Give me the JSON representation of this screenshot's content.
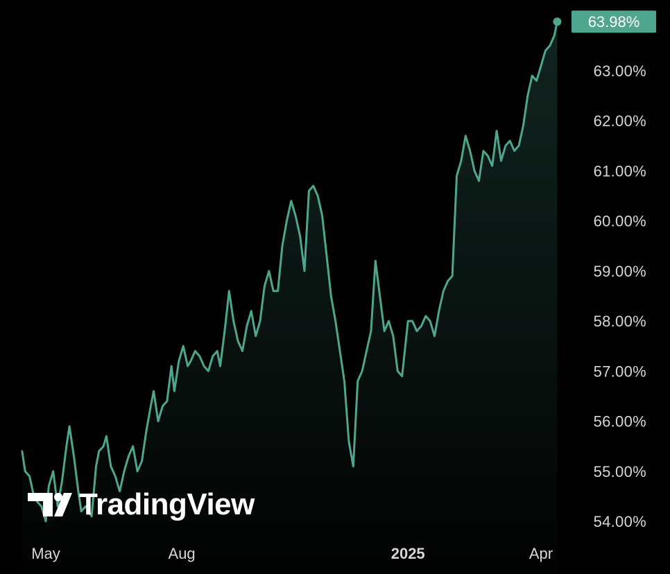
{
  "watermark": {
    "text": "TradingView",
    "logo": "tradingview-logo"
  },
  "colors": {
    "background": "#000000",
    "line": "#4fa68f",
    "badge": "#4fa68f",
    "text": "#d6d6d6"
  },
  "chart_data": {
    "type": "area",
    "ylim": [
      53.8,
      64.3
    ],
    "y_ticks": [
      "63.00%",
      "62.00%",
      "61.00%",
      "60.00%",
      "59.00%",
      "58.00%",
      "57.00%",
      "56.00%",
      "55.00%",
      "54.00%"
    ],
    "x_ticks": [
      {
        "label": "May",
        "x": "2024-05-01",
        "bold": false
      },
      {
        "label": "Aug",
        "x": "2024-08-01",
        "bold": false
      },
      {
        "label": "2025",
        "x": "2025-01-01",
        "bold": true
      },
      {
        "label": "Apr",
        "x": "2025-04-01",
        "bold": false
      }
    ],
    "last_value_label": "63.98%",
    "series": [
      {
        "x": [
          "2024-04-15",
          "2024-04-17",
          "2024-04-20",
          "2024-04-23",
          "2024-04-25",
          "2024-04-28",
          "2024-05-01",
          "2024-05-03",
          "2024-05-06",
          "2024-05-09",
          "2024-05-12",
          "2024-05-15",
          "2024-05-17",
          "2024-05-20",
          "2024-05-23",
          "2024-05-25",
          "2024-05-28",
          "2024-06-01",
          "2024-06-04",
          "2024-06-06",
          "2024-06-09",
          "2024-06-11",
          "2024-06-14",
          "2024-06-17",
          "2024-06-20",
          "2024-06-23",
          "2024-06-26",
          "2024-06-29",
          "2024-07-02",
          "2024-07-05",
          "2024-07-08",
          "2024-07-11",
          "2024-07-13",
          "2024-07-16",
          "2024-07-19",
          "2024-07-22",
          "2024-07-25",
          "2024-07-27",
          "2024-07-30",
          "2024-08-02",
          "2024-08-05",
          "2024-08-07",
          "2024-08-10",
          "2024-08-13",
          "2024-08-16",
          "2024-08-19",
          "2024-08-22",
          "2024-08-25",
          "2024-08-27",
          "2024-08-30",
          "2024-09-02",
          "2024-09-05",
          "2024-09-08",
          "2024-09-11",
          "2024-09-14",
          "2024-09-17",
          "2024-09-20",
          "2024-09-23",
          "2024-09-26",
          "2024-09-29",
          "2024-10-02",
          "2024-10-05",
          "2024-10-08",
          "2024-10-11",
          "2024-10-14",
          "2024-10-17",
          "2024-10-20",
          "2024-10-23",
          "2024-10-26",
          "2024-10-29",
          "2024-11-01",
          "2024-11-04",
          "2024-11-07",
          "2024-11-10",
          "2024-11-13",
          "2024-11-16",
          "2024-11-19",
          "2024-11-22",
          "2024-11-25",
          "2024-11-28",
          "2024-12-01",
          "2024-12-04",
          "2024-12-07",
          "2024-12-10",
          "2024-12-13",
          "2024-12-16",
          "2024-12-19",
          "2024-12-22",
          "2024-12-25",
          "2024-12-28",
          "2025-01-01",
          "2025-01-04",
          "2025-01-07",
          "2025-01-10",
          "2025-01-13",
          "2025-01-16",
          "2025-01-19",
          "2025-01-22",
          "2025-01-25",
          "2025-01-28",
          "2025-01-31",
          "2025-02-03",
          "2025-02-06",
          "2025-02-09",
          "2025-02-12",
          "2025-02-15",
          "2025-02-18",
          "2025-02-21",
          "2025-02-24",
          "2025-02-27",
          "2025-03-02",
          "2025-03-05",
          "2025-03-08",
          "2025-03-11",
          "2025-03-14",
          "2025-03-17",
          "2025-03-20",
          "2025-03-23",
          "2025-03-26",
          "2025-03-29",
          "2025-04-01",
          "2025-04-04",
          "2025-04-07",
          "2025-04-10",
          "2025-04-12"
        ],
        "values": [
          55.4,
          55.0,
          54.9,
          54.5,
          54.4,
          54.3,
          54.0,
          54.7,
          55.0,
          54.3,
          54.8,
          55.5,
          55.9,
          55.3,
          54.6,
          54.2,
          54.3,
          54.1,
          55.1,
          55.4,
          55.5,
          55.7,
          55.1,
          54.9,
          54.6,
          55.0,
          55.3,
          55.5,
          55.0,
          55.2,
          55.8,
          56.3,
          56.6,
          56.0,
          56.3,
          56.4,
          57.1,
          56.6,
          57.2,
          57.5,
          57.1,
          57.2,
          57.4,
          57.3,
          57.1,
          57.0,
          57.3,
          57.4,
          57.1,
          57.8,
          58.6,
          58.0,
          57.6,
          57.4,
          57.9,
          58.2,
          57.7,
          58.0,
          58.7,
          59.0,
          58.6,
          58.6,
          59.5,
          60.0,
          60.4,
          60.1,
          59.7,
          59.0,
          60.6,
          60.7,
          60.5,
          60.1,
          59.3,
          58.5,
          58.0,
          57.4,
          56.8,
          55.6,
          55.1,
          56.8,
          57.0,
          57.4,
          57.8,
          59.2,
          58.5,
          57.8,
          58.0,
          57.7,
          57.0,
          56.9,
          58.0,
          58.0,
          57.8,
          57.9,
          58.1,
          58.0,
          57.7,
          58.2,
          58.6,
          58.8,
          58.9,
          60.9,
          61.2,
          61.7,
          61.4,
          61.0,
          60.8,
          61.4,
          61.3,
          61.1,
          61.8,
          61.2,
          61.5,
          61.6,
          61.4,
          61.5,
          61.9,
          62.5,
          62.9,
          62.8,
          63.1,
          63.4,
          63.5,
          63.7,
          63.98
        ]
      }
    ]
  }
}
